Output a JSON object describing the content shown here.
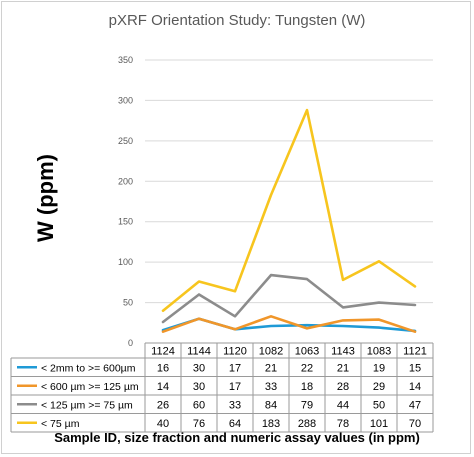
{
  "chart_data": {
    "type": "line",
    "title": "pXRF Orientation Study: Tungsten (W)",
    "ylabel": "W (ppm)",
    "xlabel": "Sample ID, size fraction and numeric assay values (in ppm)",
    "categories": [
      "1124",
      "1144",
      "1120",
      "1082",
      "1063",
      "1143",
      "1083",
      "1121"
    ],
    "ylim": [
      0,
      350
    ],
    "yticks": [
      0,
      50,
      100,
      150,
      200,
      250,
      300,
      350
    ],
    "grid": true,
    "legend": "data-table",
    "series": [
      {
        "name": "< 2mm to >= 600µm",
        "color": "#1f9ad6",
        "values": [
          16,
          30,
          17,
          21,
          22,
          21,
          19,
          15
        ]
      },
      {
        "name": "< 600 µm >= 125 µm",
        "color": "#f0962a",
        "values": [
          14,
          30,
          17,
          33,
          18,
          28,
          29,
          14
        ]
      },
      {
        "name": "< 125 µm >= 75 µm",
        "color": "#8c8c8c",
        "values": [
          26,
          60,
          33,
          84,
          79,
          44,
          50,
          47
        ]
      },
      {
        "name": "< 75 µm",
        "color": "#f7c51e",
        "values": [
          40,
          76,
          64,
          183,
          288,
          78,
          101,
          70
        ]
      }
    ]
  }
}
